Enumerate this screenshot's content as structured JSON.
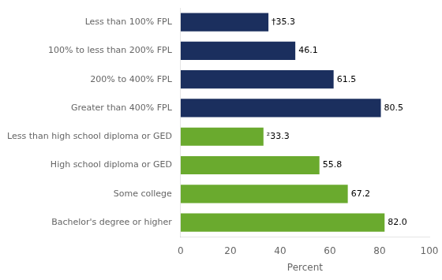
{
  "chart_data": {
    "type": "bar",
    "orientation": "horizontal",
    "categories": [
      "Less than 100% FPL",
      "100% to less than 200% FPL",
      "200% to 400% FPL",
      "Greater than 400% FPL",
      "Less than high school diploma or GED",
      "High school diploma or GED",
      "Some college",
      "Bachelor's degree or higher"
    ],
    "values": [
      35.3,
      46.1,
      61.5,
      80.5,
      33.3,
      55.8,
      67.2,
      82.0
    ],
    "value_labels": [
      "†35.3",
      "46.1",
      "61.5",
      "80.5",
      "²33.3",
      "55.8",
      "67.2",
      "82.0"
    ],
    "colors": [
      "#1b2f5e",
      "#1b2f5e",
      "#1b2f5e",
      "#1b2f5e",
      "#6aaa2e",
      "#6aaa2e",
      "#6aaa2e",
      "#6aaa2e"
    ],
    "xlabel": "Percent",
    "xlim": [
      0,
      100
    ],
    "xticks": [
      0,
      20,
      40,
      60,
      80,
      100
    ],
    "grid": false,
    "data_labels": true
  }
}
